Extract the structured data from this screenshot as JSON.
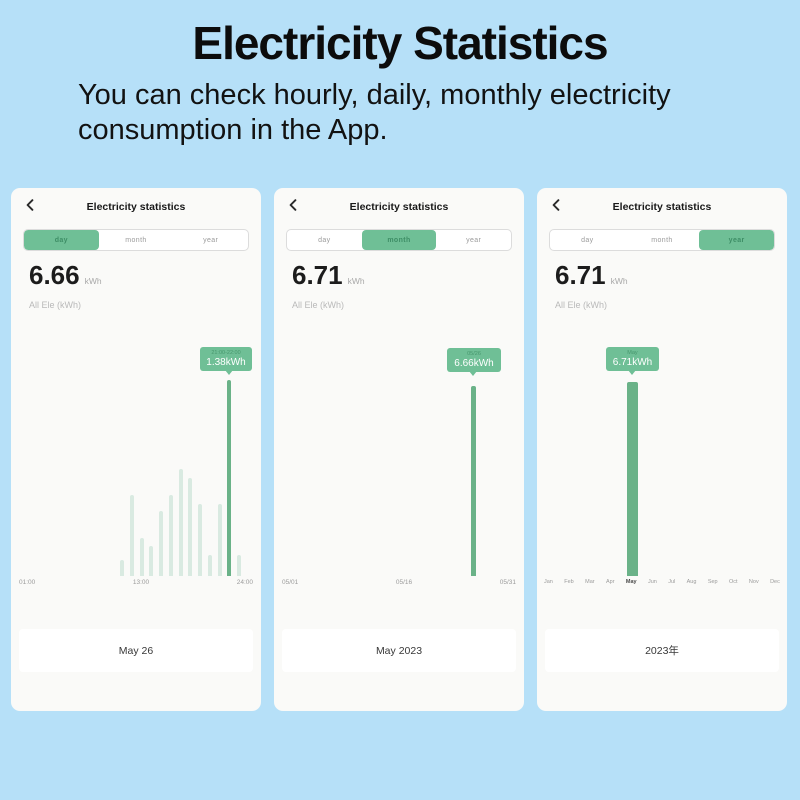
{
  "header": {
    "title": "Electricity Statistics",
    "subtitle": "You can check hourly, daily, monthly electricity consumption in the App."
  },
  "colors": {
    "page_background": "#b6e0f8",
    "accent_green": "#6fbf96",
    "bar_highlight": "#6ab288",
    "bar_light": "#d9eae1",
    "card_background": "#fafaf8"
  },
  "cards": [
    {
      "nav_title": "Electricity statistics",
      "tabs": [
        "day",
        "month",
        "year"
      ],
      "active_tab": "day",
      "total_value": "6.66",
      "total_unit": "kWh",
      "series_label": "All Ele (kWh)",
      "tooltip": {
        "title": "21:00-22:00",
        "value": "1.38kWh"
      },
      "x_labels": [
        "01:00",
        "13:00",
        "24:00"
      ],
      "date_selector": "May 26"
    },
    {
      "nav_title": "Electricity statistics",
      "tabs": [
        "day",
        "month",
        "year"
      ],
      "active_tab": "month",
      "total_value": "6.71",
      "total_unit": "kWh",
      "series_label": "All Ele (kWh)",
      "tooltip": {
        "title": "05/26",
        "value": "6.66kWh"
      },
      "x_labels": [
        "05/01",
        "05/16",
        "05/31"
      ],
      "date_selector": "May 2023"
    },
    {
      "nav_title": "Electricity statistics",
      "tabs": [
        "day",
        "month",
        "year"
      ],
      "active_tab": "year",
      "total_value": "6.71",
      "total_unit": "kWh",
      "series_label": "All Ele (kWh)",
      "tooltip": {
        "title": "May",
        "value": "6.71kWh"
      },
      "x_labels": [
        "Jan",
        "Feb",
        "Mar",
        "Apr",
        "May",
        "Jun",
        "Jul",
        "Aug",
        "Sep",
        "Oct",
        "Nov",
        "Dec"
      ],
      "highlight_x_label": "May",
      "date_selector": "2023年"
    }
  ],
  "chart_data": [
    {
      "type": "bar",
      "unit": "kWh",
      "values": [
        0.11,
        0.57,
        0.27,
        0.21,
        0.46,
        0.57,
        0.75,
        0.69,
        0.51,
        0.15,
        0.51,
        1.38,
        0.15
      ],
      "highlight_index": 11,
      "highlight_label": "21:00-22:00",
      "highlight_value": 1.38,
      "x_axis_ticks": [
        "01:00",
        "13:00",
        "24:00"
      ],
      "ylim": [
        0,
        1.5
      ],
      "total_shown": 6.66
    },
    {
      "type": "bar",
      "unit": "kWh",
      "x": [
        "05/26"
      ],
      "values": [
        6.66
      ],
      "x_axis_ticks": [
        "05/01",
        "05/16",
        "05/31"
      ],
      "axis_range": [
        "05/01",
        "05/31"
      ],
      "total_shown": 6.71
    },
    {
      "type": "bar",
      "unit": "kWh",
      "categories": [
        "Jan",
        "Feb",
        "Mar",
        "Apr",
        "May",
        "Jun",
        "Jul",
        "Aug",
        "Sep",
        "Oct",
        "Nov",
        "Dec"
      ],
      "values": [
        0,
        0,
        0,
        0,
        6.71,
        0,
        0,
        0,
        0,
        0,
        0,
        0
      ],
      "total_shown": 6.71
    }
  ]
}
